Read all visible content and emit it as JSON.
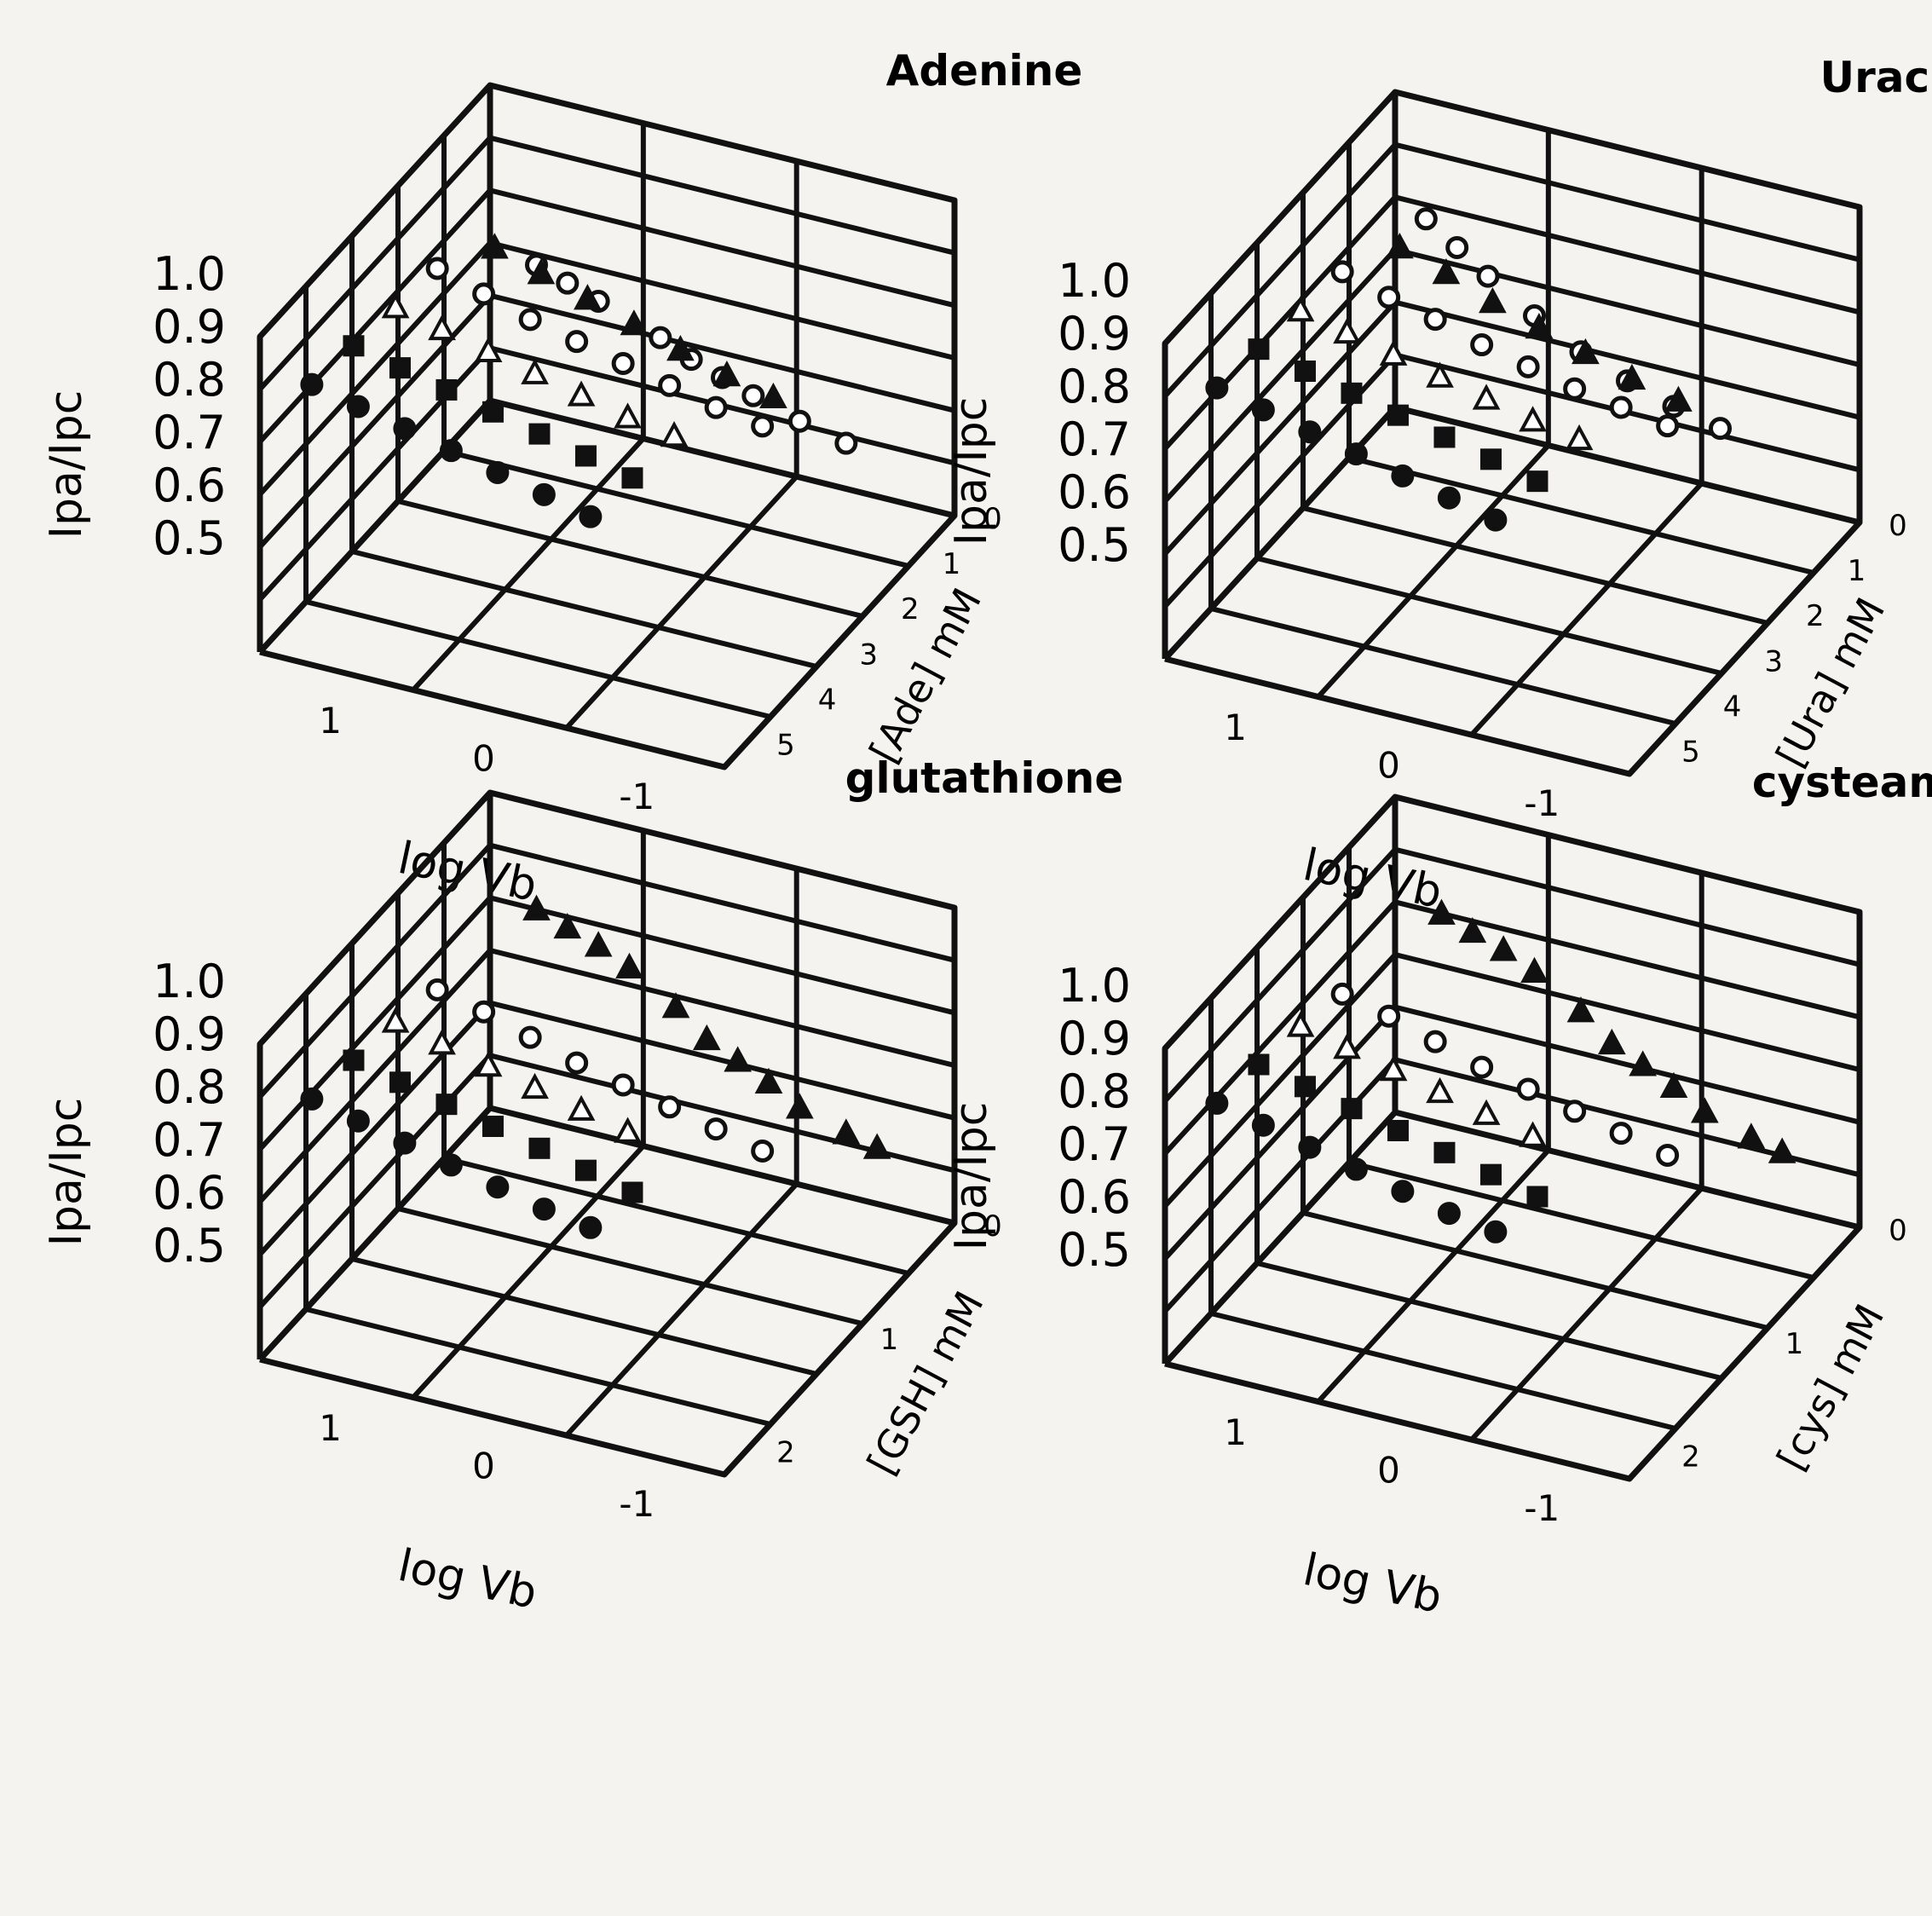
{
  "chart_data": [
    {
      "type": "scatter",
      "title": "Adenine",
      "ylabel": "Ipa/Ipc",
      "xlabel": "log Vb",
      "zlabel": "[Ade] mM",
      "y_ticks": [
        "1.0",
        "0.9",
        "0.8",
        "0.7",
        "0.6",
        "0.5"
      ],
      "x_ticks": [
        "1",
        "0",
        "-1"
      ],
      "z_ticks": [
        "0",
        "1",
        "2",
        "3",
        "4",
        "5"
      ],
      "ylim": [
        0.4,
        1.3
      ],
      "xlim": [
        1.5,
        -1.5
      ],
      "zlim": [
        0,
        5.5
      ],
      "marker_color": "#111111",
      "series": [
        {
          "marker": "open-circle",
          "points": [
            [
              1.2,
              0,
              0.82
            ],
            [
              1.0,
              0,
              0.79
            ],
            [
              0.8,
              0,
              0.76
            ],
            [
              0.4,
              0,
              0.7
            ],
            [
              0.2,
              0,
              0.66
            ],
            [
              0.0,
              0,
              0.63
            ],
            [
              -0.2,
              0,
              0.6
            ],
            [
              -0.5,
              0,
              0.56
            ],
            [
              -0.8,
              0,
              0.53
            ]
          ]
        },
        {
          "marker": "filled-triangle",
          "points": [
            [
              1.2,
              1,
              1.0
            ],
            [
              0.9,
              1,
              0.96
            ],
            [
              0.6,
              1,
              0.92
            ],
            [
              0.3,
              1,
              0.88
            ],
            [
              0.0,
              1,
              0.84
            ],
            [
              -0.3,
              1,
              0.8
            ],
            [
              -0.6,
              1,
              0.77
            ]
          ]
        },
        {
          "marker": "open-circle",
          "points": [
            [
              1.3,
              2,
              1.06
            ],
            [
              1.0,
              2,
              1.02
            ],
            [
              0.7,
              2,
              0.98
            ],
            [
              0.4,
              2,
              0.95
            ],
            [
              0.1,
              2,
              0.92
            ],
            [
              -0.2,
              2,
              0.89
            ],
            [
              -0.5,
              2,
              0.86
            ],
            [
              -0.8,
              2,
              0.84
            ]
          ]
        },
        {
          "marker": "open-triangle",
          "points": [
            [
              1.3,
              3,
              1.08
            ],
            [
              1.0,
              3,
              1.05
            ],
            [
              0.7,
              3,
              1.02
            ],
            [
              0.4,
              3,
              0.99
            ],
            [
              0.1,
              3,
              0.96
            ],
            [
              -0.2,
              3,
              0.93
            ],
            [
              -0.5,
              3,
              0.91
            ]
          ]
        },
        {
          "marker": "filled-square",
          "points": [
            [
              1.3,
              4,
              1.1
            ],
            [
              1.0,
              4,
              1.07
            ],
            [
              0.7,
              4,
              1.04
            ],
            [
              0.4,
              4,
              1.01
            ],
            [
              0.1,
              4,
              0.98
            ],
            [
              -0.2,
              4,
              0.95
            ],
            [
              -0.5,
              4,
              0.92
            ]
          ]
        },
        {
          "marker": "filled-circle",
          "points": [
            [
              1.3,
              5,
              1.12
            ],
            [
              1.0,
              5,
              1.09
            ],
            [
              0.7,
              5,
              1.06
            ],
            [
              0.4,
              5,
              1.03
            ],
            [
              0.1,
              5,
              1.0
            ],
            [
              -0.2,
              5,
              0.97
            ],
            [
              -0.5,
              5,
              0.94
            ]
          ]
        }
      ]
    },
    {
      "type": "scatter",
      "title": "Uracil",
      "ylabel": "Ipa/Ipc",
      "xlabel": "log Vb",
      "zlabel": "[Ura] mM",
      "y_ticks": [
        "1.0",
        "0.9",
        "0.8",
        "0.7",
        "0.6",
        "0.5"
      ],
      "x_ticks": [
        "1",
        "0",
        "-1"
      ],
      "z_ticks": [
        "0",
        "1",
        "2",
        "3",
        "4",
        "5"
      ],
      "ylim": [
        0.4,
        1.3
      ],
      "xlim": [
        1.5,
        -1.5
      ],
      "zlim": [
        0,
        5.5
      ],
      "marker_color": "#111111",
      "series": [
        {
          "marker": "open-circle",
          "points": [
            [
              1.3,
              0,
              0.96
            ],
            [
              1.1,
              0,
              0.9
            ],
            [
              0.9,
              0,
              0.84
            ],
            [
              0.6,
              0,
              0.76
            ],
            [
              0.3,
              0,
              0.69
            ],
            [
              0.0,
              0,
              0.64
            ],
            [
              -0.3,
              0,
              0.6
            ],
            [
              -0.6,
              0,
              0.57
            ]
          ]
        },
        {
          "marker": "filled-triangle",
          "points": [
            [
              1.2,
              1,
              1.02
            ],
            [
              0.9,
              1,
              0.98
            ],
            [
              0.6,
              1,
              0.93
            ],
            [
              0.3,
              1,
              0.89
            ],
            [
              0.0,
              1,
              0.85
            ],
            [
              -0.3,
              1,
              0.81
            ],
            [
              -0.6,
              1,
              0.78
            ]
          ]
        },
        {
          "marker": "open-circle",
          "points": [
            [
              1.3,
              2,
              1.07
            ],
            [
              1.0,
              2,
              1.03
            ],
            [
              0.7,
              2,
              1.0
            ],
            [
              0.4,
              2,
              0.96
            ],
            [
              0.1,
              2,
              0.93
            ],
            [
              -0.2,
              2,
              0.9
            ],
            [
              -0.5,
              2,
              0.88
            ],
            [
              -0.8,
              2,
              0.86
            ]
          ]
        },
        {
          "marker": "open-triangle",
          "points": [
            [
              1.3,
              3,
              1.09
            ],
            [
              1.0,
              3,
              1.06
            ],
            [
              0.7,
              3,
              1.03
            ],
            [
              0.4,
              3,
              1.0
            ],
            [
              0.1,
              3,
              0.97
            ],
            [
              -0.2,
              3,
              0.94
            ],
            [
              -0.5,
              3,
              0.92
            ]
          ]
        },
        {
          "marker": "filled-square",
          "points": [
            [
              1.3,
              4,
              1.11
            ],
            [
              1.0,
              4,
              1.08
            ],
            [
              0.7,
              4,
              1.05
            ],
            [
              0.4,
              4,
              1.02
            ],
            [
              0.1,
              4,
              0.99
            ],
            [
              -0.2,
              4,
              0.96
            ],
            [
              -0.5,
              4,
              0.93
            ]
          ]
        },
        {
          "marker": "filled-circle",
          "points": [
            [
              1.3,
              5,
              1.13
            ],
            [
              1.0,
              5,
              1.1
            ],
            [
              0.7,
              5,
              1.07
            ],
            [
              0.4,
              5,
              1.04
            ],
            [
              0.1,
              5,
              1.01
            ],
            [
              -0.2,
              5,
              0.98
            ],
            [
              -0.5,
              5,
              0.95
            ]
          ]
        }
      ]
    },
    {
      "type": "scatter",
      "title": "glutathione",
      "ylabel": "Ipa/Ipc",
      "xlabel": "log Vb",
      "zlabel": "[GSH] mM",
      "y_ticks": [
        "1.0",
        "0.9",
        "0.8",
        "0.7",
        "0.6",
        "0.5"
      ],
      "x_ticks": [
        "1",
        "0",
        "-1"
      ],
      "z_ticks": [
        "0",
        "1",
        "2"
      ],
      "ylim": [
        0.4,
        1.3
      ],
      "xlim": [
        1.5,
        -1.5
      ],
      "zlim": [
        0,
        2.2
      ],
      "marker_color": "#111111",
      "series": [
        {
          "marker": "filled-triangle",
          "points": [
            [
              1.2,
              0,
              1.0
            ],
            [
              1.0,
              0,
              0.97
            ],
            [
              0.8,
              0,
              0.94
            ],
            [
              0.6,
              0,
              0.9
            ],
            [
              0.3,
              0,
              0.82
            ],
            [
              0.1,
              0,
              0.75
            ],
            [
              -0.1,
              0,
              0.71
            ],
            [
              -0.3,
              0,
              0.67
            ],
            [
              -0.5,
              0,
              0.62
            ],
            [
              -0.8,
              0,
              0.58
            ],
            [
              -1.0,
              0,
              0.56
            ]
          ]
        },
        {
          "marker": "open-circle",
          "points": [
            [
              1.3,
              0.8,
              1.02
            ],
            [
              1.0,
              0.8,
              0.99
            ],
            [
              0.7,
              0.8,
              0.95
            ],
            [
              0.4,
              0.8,
              0.91
            ],
            [
              0.1,
              0.8,
              0.88
            ],
            [
              -0.2,
              0.8,
              0.85
            ],
            [
              -0.5,
              0.8,
              0.82
            ],
            [
              -0.8,
              0.8,
              0.79
            ]
          ]
        },
        {
          "marker": "open-triangle",
          "points": [
            [
              1.3,
              1.2,
              1.06
            ],
            [
              1.0,
              1.2,
              1.03
            ],
            [
              0.7,
              1.2,
              1.0
            ],
            [
              0.4,
              1.2,
              0.97
            ],
            [
              0.1,
              1.2,
              0.94
            ],
            [
              -0.2,
              1.2,
              0.91
            ]
          ]
        },
        {
          "marker": "filled-square",
          "points": [
            [
              1.3,
              1.6,
              1.08
            ],
            [
              1.0,
              1.6,
              1.05
            ],
            [
              0.7,
              1.6,
              1.02
            ],
            [
              0.4,
              1.6,
              0.99
            ],
            [
              0.1,
              1.6,
              0.96
            ],
            [
              -0.2,
              1.6,
              0.93
            ],
            [
              -0.5,
              1.6,
              0.9
            ]
          ]
        },
        {
          "marker": "filled-circle",
          "points": [
            [
              1.3,
              2.0,
              1.1
            ],
            [
              1.0,
              2.0,
              1.07
            ],
            [
              0.7,
              2.0,
              1.04
            ],
            [
              0.4,
              2.0,
              1.01
            ],
            [
              0.1,
              2.0,
              0.98
            ],
            [
              -0.2,
              2.0,
              0.95
            ],
            [
              -0.5,
              2.0,
              0.93
            ]
          ]
        }
      ]
    },
    {
      "type": "scatter",
      "title": "cysteamine",
      "ylabel": "Ipa/Ipc",
      "xlabel": "log Vb",
      "zlabel": "[cys] mM",
      "y_ticks": [
        "1.0",
        "0.9",
        "0.8",
        "0.7",
        "0.6",
        "0.5"
      ],
      "x_ticks": [
        "1",
        "0",
        "-1"
      ],
      "z_ticks": [
        "0",
        "1",
        "2"
      ],
      "ylim": [
        0.4,
        1.3
      ],
      "xlim": [
        1.5,
        -1.5
      ],
      "zlim": [
        0,
        2.2
      ],
      "marker_color": "#111111",
      "series": [
        {
          "marker": "filled-triangle",
          "points": [
            [
              1.2,
              0,
              1.0
            ],
            [
              1.0,
              0,
              0.97
            ],
            [
              0.8,
              0,
              0.94
            ],
            [
              0.6,
              0,
              0.9
            ],
            [
              0.3,
              0,
              0.82
            ],
            [
              0.1,
              0,
              0.75
            ],
            [
              -0.1,
              0,
              0.71
            ],
            [
              -0.3,
              0,
              0.67
            ],
            [
              -0.5,
              0,
              0.62
            ],
            [
              -0.8,
              0,
              0.58
            ],
            [
              -1.0,
              0,
              0.56
            ]
          ]
        },
        {
          "marker": "open-circle",
          "points": [
            [
              1.3,
              0.8,
              1.02
            ],
            [
              1.0,
              0.8,
              0.99
            ],
            [
              0.7,
              0.8,
              0.95
            ],
            [
              0.4,
              0.8,
              0.91
            ],
            [
              0.1,
              0.8,
              0.88
            ],
            [
              -0.2,
              0.8,
              0.85
            ],
            [
              -0.5,
              0.8,
              0.82
            ],
            [
              -0.8,
              0.8,
              0.79
            ]
          ]
        },
        {
          "marker": "open-triangle",
          "points": [
            [
              1.3,
              1.2,
              1.06
            ],
            [
              1.0,
              1.2,
              1.03
            ],
            [
              0.7,
              1.2,
              1.0
            ],
            [
              0.4,
              1.2,
              0.97
            ],
            [
              0.1,
              1.2,
              0.94
            ],
            [
              -0.2,
              1.2,
              0.91
            ]
          ]
        },
        {
          "marker": "filled-square",
          "points": [
            [
              1.3,
              1.6,
              1.08
            ],
            [
              1.0,
              1.6,
              1.05
            ],
            [
              0.7,
              1.6,
              1.02
            ],
            [
              0.4,
              1.6,
              0.99
            ],
            [
              0.1,
              1.6,
              0.96
            ],
            [
              -0.2,
              1.6,
              0.93
            ],
            [
              -0.5,
              1.6,
              0.9
            ]
          ]
        },
        {
          "marker": "filled-circle",
          "points": [
            [
              1.3,
              2.0,
              1.1
            ],
            [
              1.0,
              2.0,
              1.07
            ],
            [
              0.7,
              2.0,
              1.04
            ],
            [
              0.4,
              2.0,
              1.01
            ],
            [
              0.1,
              2.0,
              0.98
            ],
            [
              -0.2,
              2.0,
              0.95
            ],
            [
              -0.5,
              2.0,
              0.93
            ]
          ]
        }
      ]
    }
  ]
}
